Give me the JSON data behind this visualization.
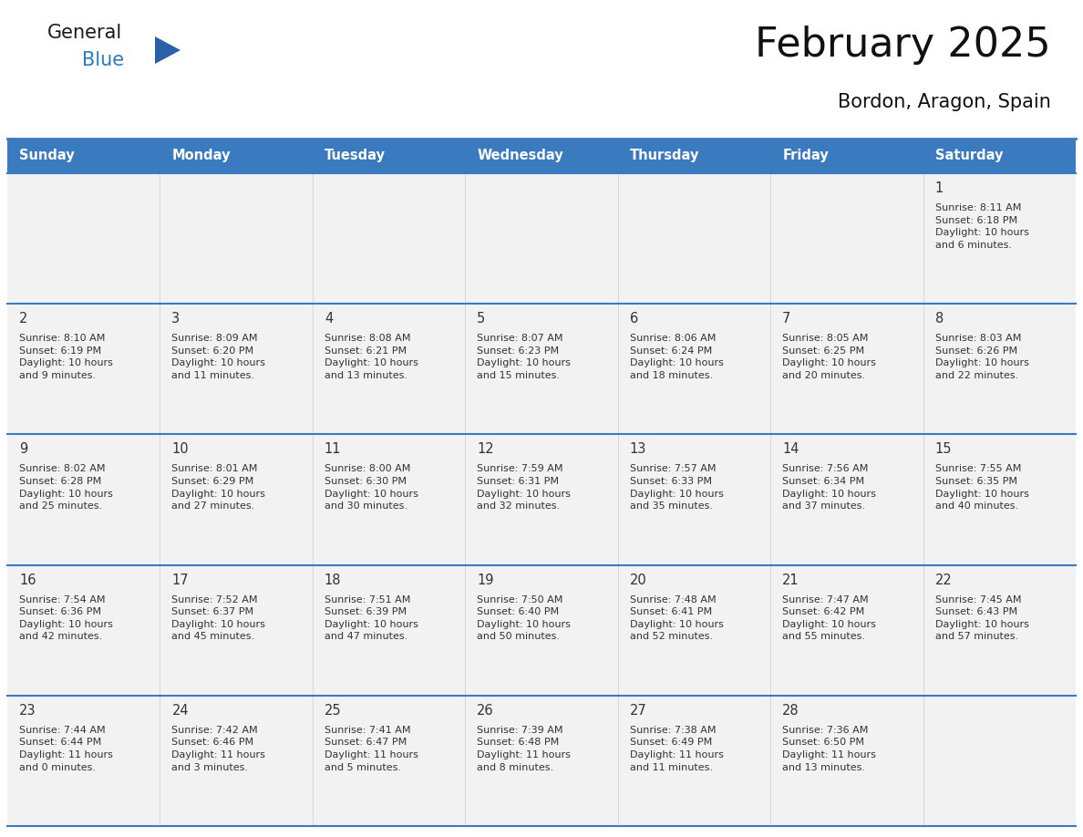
{
  "title": "February 2025",
  "subtitle": "Bordon, Aragon, Spain",
  "header_bg": "#3a7abf",
  "header_text": "#ffffff",
  "cell_bg": "#f2f2f2",
  "border_color": "#3a7abf",
  "text_color": "#333333",
  "day_names": [
    "Sunday",
    "Monday",
    "Tuesday",
    "Wednesday",
    "Thursday",
    "Friday",
    "Saturday"
  ],
  "days": [
    {
      "day": 1,
      "col": 6,
      "row": 0,
      "sunrise": "8:11 AM",
      "sunset": "6:18 PM",
      "daylight": "10 hours\nand 6 minutes."
    },
    {
      "day": 2,
      "col": 0,
      "row": 1,
      "sunrise": "8:10 AM",
      "sunset": "6:19 PM",
      "daylight": "10 hours\nand 9 minutes."
    },
    {
      "day": 3,
      "col": 1,
      "row": 1,
      "sunrise": "8:09 AM",
      "sunset": "6:20 PM",
      "daylight": "10 hours\nand 11 minutes."
    },
    {
      "day": 4,
      "col": 2,
      "row": 1,
      "sunrise": "8:08 AM",
      "sunset": "6:21 PM",
      "daylight": "10 hours\nand 13 minutes."
    },
    {
      "day": 5,
      "col": 3,
      "row": 1,
      "sunrise": "8:07 AM",
      "sunset": "6:23 PM",
      "daylight": "10 hours\nand 15 minutes."
    },
    {
      "day": 6,
      "col": 4,
      "row": 1,
      "sunrise": "8:06 AM",
      "sunset": "6:24 PM",
      "daylight": "10 hours\nand 18 minutes."
    },
    {
      "day": 7,
      "col": 5,
      "row": 1,
      "sunrise": "8:05 AM",
      "sunset": "6:25 PM",
      "daylight": "10 hours\nand 20 minutes."
    },
    {
      "day": 8,
      "col": 6,
      "row": 1,
      "sunrise": "8:03 AM",
      "sunset": "6:26 PM",
      "daylight": "10 hours\nand 22 minutes."
    },
    {
      "day": 9,
      "col": 0,
      "row": 2,
      "sunrise": "8:02 AM",
      "sunset": "6:28 PM",
      "daylight": "10 hours\nand 25 minutes."
    },
    {
      "day": 10,
      "col": 1,
      "row": 2,
      "sunrise": "8:01 AM",
      "sunset": "6:29 PM",
      "daylight": "10 hours\nand 27 minutes."
    },
    {
      "day": 11,
      "col": 2,
      "row": 2,
      "sunrise": "8:00 AM",
      "sunset": "6:30 PM",
      "daylight": "10 hours\nand 30 minutes."
    },
    {
      "day": 12,
      "col": 3,
      "row": 2,
      "sunrise": "7:59 AM",
      "sunset": "6:31 PM",
      "daylight": "10 hours\nand 32 minutes."
    },
    {
      "day": 13,
      "col": 4,
      "row": 2,
      "sunrise": "7:57 AM",
      "sunset": "6:33 PM",
      "daylight": "10 hours\nand 35 minutes."
    },
    {
      "day": 14,
      "col": 5,
      "row": 2,
      "sunrise": "7:56 AM",
      "sunset": "6:34 PM",
      "daylight": "10 hours\nand 37 minutes."
    },
    {
      "day": 15,
      "col": 6,
      "row": 2,
      "sunrise": "7:55 AM",
      "sunset": "6:35 PM",
      "daylight": "10 hours\nand 40 minutes."
    },
    {
      "day": 16,
      "col": 0,
      "row": 3,
      "sunrise": "7:54 AM",
      "sunset": "6:36 PM",
      "daylight": "10 hours\nand 42 minutes."
    },
    {
      "day": 17,
      "col": 1,
      "row": 3,
      "sunrise": "7:52 AM",
      "sunset": "6:37 PM",
      "daylight": "10 hours\nand 45 minutes."
    },
    {
      "day": 18,
      "col": 2,
      "row": 3,
      "sunrise": "7:51 AM",
      "sunset": "6:39 PM",
      "daylight": "10 hours\nand 47 minutes."
    },
    {
      "day": 19,
      "col": 3,
      "row": 3,
      "sunrise": "7:50 AM",
      "sunset": "6:40 PM",
      "daylight": "10 hours\nand 50 minutes."
    },
    {
      "day": 20,
      "col": 4,
      "row": 3,
      "sunrise": "7:48 AM",
      "sunset": "6:41 PM",
      "daylight": "10 hours\nand 52 minutes."
    },
    {
      "day": 21,
      "col": 5,
      "row": 3,
      "sunrise": "7:47 AM",
      "sunset": "6:42 PM",
      "daylight": "10 hours\nand 55 minutes."
    },
    {
      "day": 22,
      "col": 6,
      "row": 3,
      "sunrise": "7:45 AM",
      "sunset": "6:43 PM",
      "daylight": "10 hours\nand 57 minutes."
    },
    {
      "day": 23,
      "col": 0,
      "row": 4,
      "sunrise": "7:44 AM",
      "sunset": "6:44 PM",
      "daylight": "11 hours\nand 0 minutes."
    },
    {
      "day": 24,
      "col": 1,
      "row": 4,
      "sunrise": "7:42 AM",
      "sunset": "6:46 PM",
      "daylight": "11 hours\nand 3 minutes."
    },
    {
      "day": 25,
      "col": 2,
      "row": 4,
      "sunrise": "7:41 AM",
      "sunset": "6:47 PM",
      "daylight": "11 hours\nand 5 minutes."
    },
    {
      "day": 26,
      "col": 3,
      "row": 4,
      "sunrise": "7:39 AM",
      "sunset": "6:48 PM",
      "daylight": "11 hours\nand 8 minutes."
    },
    {
      "day": 27,
      "col": 4,
      "row": 4,
      "sunrise": "7:38 AM",
      "sunset": "6:49 PM",
      "daylight": "11 hours\nand 11 minutes."
    },
    {
      "day": 28,
      "col": 5,
      "row": 4,
      "sunrise": "7:36 AM",
      "sunset": "6:50 PM",
      "daylight": "11 hours\nand 13 minutes."
    }
  ],
  "logo_text1": "General",
  "logo_text2": "Blue",
  "logo_text1_color": "#1a1a1a",
  "logo_text2_color": "#2b7bbf",
  "logo_triangle_color": "#2b5fa8",
  "fig_width": 11.88,
  "fig_height": 9.18,
  "dpi": 100
}
